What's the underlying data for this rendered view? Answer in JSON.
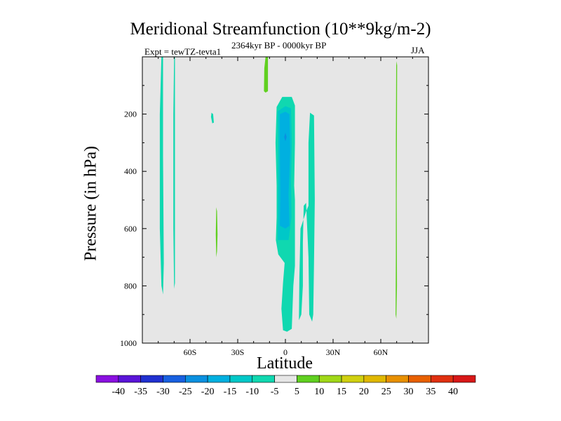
{
  "chart_data": {
    "type": "contour",
    "title": "Meridional Streamfunction (10**9kg/m-2)",
    "subtitle_left": "Expt = tewTZ-tevta1",
    "subtitle_center": "2364kyr BP - 0000kyr BP",
    "subtitle_right": "JJA",
    "xlabel": "Latitude",
    "ylabel": "Pressure (in hPa)",
    "xlim": [
      -90,
      90
    ],
    "ylim": [
      0,
      1000
    ],
    "y_inverted": true,
    "x_ticks": [
      {
        "value": -60,
        "label": "60S"
      },
      {
        "value": -30,
        "label": "30S"
      },
      {
        "value": 0,
        "label": "0"
      },
      {
        "value": 30,
        "label": "30N"
      },
      {
        "value": 60,
        "label": "60N"
      }
    ],
    "y_ticks": [
      {
        "value": 200,
        "label": "200"
      },
      {
        "value": 400,
        "label": "400"
      },
      {
        "value": 600,
        "label": "600"
      },
      {
        "value": 800,
        "label": "800"
      },
      {
        "value": 1000,
        "label": "1000"
      }
    ],
    "background_color": "#e6e6e6",
    "colorbar": {
      "levels": [
        "-40",
        "-35",
        "-30",
        "-25",
        "-20",
        "-15",
        "-10",
        "-5",
        "5",
        "10",
        "15",
        "20",
        "25",
        "30",
        "35",
        "40"
      ],
      "colors": [
        "#8a10e0",
        "#5a14d8",
        "#2030d0",
        "#1860e0",
        "#0a90e0",
        "#00b0e0",
        "#00c8c8",
        "#10d8b0",
        "#e6e6e6",
        "#60d020",
        "#a0d818",
        "#d0d010",
        "#e0b800",
        "#e89000",
        "#e86000",
        "#e03010",
        "#d81818"
      ]
    },
    "regions": [
      {
        "name": "band-75s",
        "level": -5,
        "points": [
          [
            -78,
            0
          ],
          [
            -77,
            0
          ],
          [
            -77,
            350
          ],
          [
            -76.5,
            720
          ],
          [
            -77,
            830
          ],
          [
            -78,
            800
          ],
          [
            -79,
            600
          ],
          [
            -79,
            200
          ]
        ]
      },
      {
        "name": "band-69s",
        "level": -5,
        "points": [
          [
            -70,
            0
          ],
          [
            -69.5,
            0
          ],
          [
            -69.5,
            500
          ],
          [
            -69.5,
            790
          ],
          [
            -70,
            810
          ],
          [
            -70.5,
            600
          ],
          [
            -70.5,
            200
          ]
        ]
      },
      {
        "name": "blob-45s",
        "level": -5,
        "points": [
          [
            -46.5,
            195
          ],
          [
            -45.5,
            200
          ],
          [
            -45,
            230
          ],
          [
            -46,
            232
          ],
          [
            -46.8,
            210
          ]
        ]
      },
      {
        "name": "green-45s",
        "level": 5,
        "points": [
          [
            -43.5,
            525
          ],
          [
            -43,
            540
          ],
          [
            -42.7,
            620
          ],
          [
            -43,
            680
          ],
          [
            -43.5,
            700
          ],
          [
            -43.8,
            620
          ]
        ]
      },
      {
        "name": "green-top-10s",
        "level": 5,
        "points": [
          [
            -12.5,
            0
          ],
          [
            -11,
            0
          ],
          [
            -11,
            120
          ],
          [
            -12.5,
            125
          ],
          [
            -13.5,
            120
          ],
          [
            -13.3,
            40
          ]
        ]
      },
      {
        "name": "band-5s-0",
        "level": -5,
        "points": [
          [
            -5.5,
            175
          ],
          [
            -2,
            140
          ],
          [
            4,
            140
          ],
          [
            6,
            170
          ],
          [
            6,
            300
          ],
          [
            5.5,
            450
          ],
          [
            6,
            500
          ],
          [
            6,
            730
          ],
          [
            5,
            800
          ],
          [
            4,
            950
          ],
          [
            1,
            960
          ],
          [
            -1.5,
            955
          ],
          [
            -2.5,
            880
          ],
          [
            -1.5,
            790
          ],
          [
            -0.5,
            720
          ],
          [
            -4.5,
            690
          ],
          [
            -6,
            640
          ],
          [
            -5.5,
            560
          ],
          [
            -5.5,
            450
          ],
          [
            -6.2,
            300
          ]
        ]
      },
      {
        "name": "band-5s-0-inner",
        "level": -10,
        "points": [
          [
            -4.8,
            190
          ],
          [
            0,
            172
          ],
          [
            3.5,
            180
          ],
          [
            4,
            300
          ],
          [
            3.5,
            430
          ],
          [
            3.8,
            560
          ],
          [
            2,
            640
          ],
          [
            -4.8,
            640
          ],
          [
            -4.6,
            450
          ],
          [
            -4.5,
            300
          ]
        ]
      },
      {
        "name": "band-5s-0-core",
        "level": -15,
        "points": [
          [
            -3.5,
            200
          ],
          [
            0,
            192
          ],
          [
            2.5,
            200
          ],
          [
            3,
            330
          ],
          [
            2,
            480
          ],
          [
            2.5,
            590
          ],
          [
            0,
            600
          ],
          [
            -3.5,
            590
          ],
          [
            -3.2,
            480
          ],
          [
            -3.5,
            330
          ]
        ]
      },
      {
        "name": "band-5s-0-deep",
        "level": -20,
        "points": [
          [
            0,
            265
          ],
          [
            0.8,
            280
          ],
          [
            0,
            295
          ],
          [
            -0.8,
            280
          ]
        ]
      },
      {
        "name": "band-15n",
        "level": -5,
        "points": [
          [
            15.5,
            195
          ],
          [
            18,
            205
          ],
          [
            18.5,
            500
          ],
          [
            18,
            720
          ],
          [
            17.5,
            900
          ],
          [
            16.8,
            925
          ],
          [
            15,
            900
          ],
          [
            14.5,
            700
          ],
          [
            13,
            510
          ],
          [
            11.5,
            520
          ],
          [
            11,
            650
          ],
          [
            11,
            800
          ],
          [
            10,
            900
          ],
          [
            8.5,
            920
          ],
          [
            8.8,
            770
          ],
          [
            9.5,
            600
          ],
          [
            13,
            540
          ],
          [
            14.5,
            520
          ],
          [
            14.5,
            300
          ]
        ]
      },
      {
        "name": "green-70n",
        "level": 5,
        "points": [
          [
            70,
            15
          ],
          [
            70.3,
            30
          ],
          [
            70,
            500
          ],
          [
            70.2,
            800
          ],
          [
            69.8,
            915
          ],
          [
            69.3,
            900
          ],
          [
            69.5,
            700
          ],
          [
            69.5,
            300
          ],
          [
            69.7,
            30
          ]
        ]
      }
    ]
  }
}
